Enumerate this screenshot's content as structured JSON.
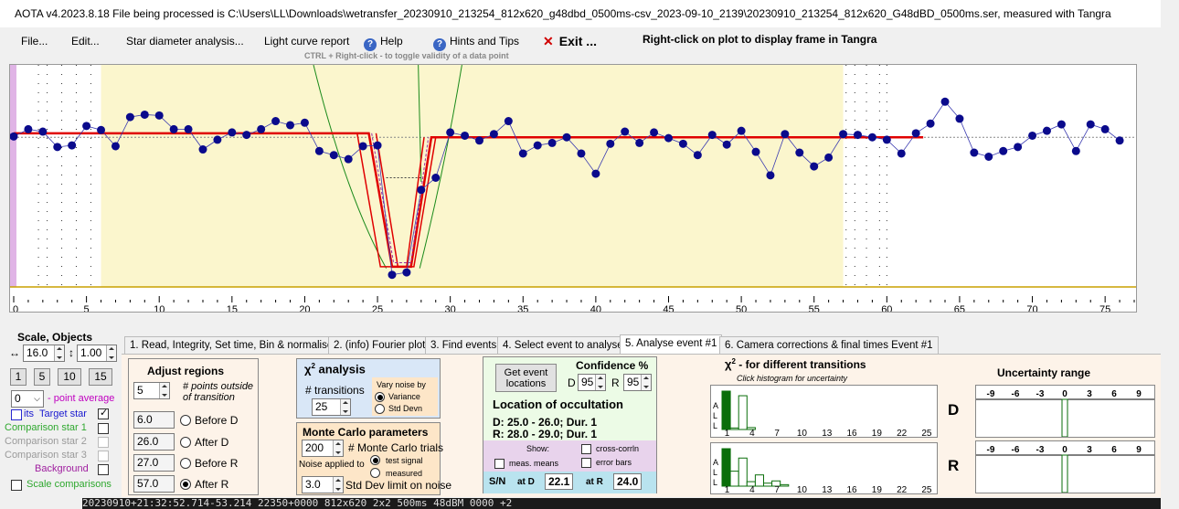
{
  "window": {
    "title": "AOTA v4.2023.8.18    File being processed is C:\\Users\\LL\\Downloads\\wetransfer_20230910_213254_812x620_g48dbd_0500ms-csv_2023-09-10_2139\\20230910_213254_812x620_G48dBD_0500ms.ser, measured with Tangra"
  },
  "menu": {
    "file": "File...",
    "edit": "Edit...",
    "star_diameter": "Star diameter analysis...",
    "light_curve": "Light curve report",
    "help": "Help",
    "hints": "Hints and Tips",
    "exit": "Exit ...",
    "right_click_hint": "Right-click on plot to display frame in Tangra",
    "ctrl_hint": "CTRL + Right-click  -  to toggle validity of a data point"
  },
  "icons": {
    "help": "help-circle-icon",
    "hints": "help-circle-icon",
    "exit": "red-x-icon"
  },
  "colors": {
    "highlight": "#fbf6cd",
    "model": "#e00000",
    "points": "#0a0a8c",
    "panel": "#fdf3e9",
    "chi_box": "#d9e7f7",
    "monte_box": "#fde6c8",
    "event_box": "#ecfbe6",
    "show_box": "#e8d3ec",
    "sn_box": "#b9e3ef"
  },
  "chart_data": {
    "type": "scatter",
    "x": [
      0,
      1,
      2,
      3,
      4,
      5,
      6,
      7,
      8,
      9,
      10,
      11,
      12,
      13,
      14,
      15,
      16,
      17,
      18,
      19,
      20,
      21,
      22,
      23,
      24,
      25,
      26,
      27,
      28,
      29,
      30,
      31,
      32,
      33,
      34,
      35,
      36,
      37,
      38,
      39,
      40,
      41,
      42,
      43,
      44,
      45,
      46,
      47,
      48,
      49,
      50,
      51,
      52,
      53,
      54,
      55,
      56,
      57,
      58,
      59,
      60,
      61,
      62,
      63,
      64,
      65,
      66,
      67,
      68,
      69,
      70,
      71,
      72,
      73,
      74,
      75,
      76
    ],
    "values": [
      0.01,
      0.1,
      0.07,
      -0.12,
      -0.1,
      0.14,
      0.09,
      -0.11,
      0.25,
      0.28,
      0.27,
      0.1,
      0.1,
      -0.15,
      -0.03,
      0.06,
      0.03,
      0.1,
      0.2,
      0.15,
      0.18,
      -0.17,
      -0.22,
      -0.27,
      -0.11,
      -0.1,
      -1.7,
      -1.67,
      -0.65,
      -0.5,
      0.06,
      0.02,
      -0.04,
      0.04,
      0.2,
      -0.2,
      -0.1,
      -0.07,
      0.0,
      -0.2,
      -0.45,
      -0.08,
      0.07,
      -0.07,
      0.06,
      -0.01,
      -0.08,
      -0.22,
      0.03,
      -0.09,
      0.08,
      -0.18,
      -0.47,
      0.04,
      -0.19,
      -0.36,
      -0.25,
      0.04,
      0.03,
      0.0,
      -0.03,
      -0.2,
      0.05,
      0.17,
      0.44,
      0.23,
      -0.19,
      -0.24,
      -0.17,
      -0.12,
      0.02,
      0.08,
      0.16,
      -0.17,
      0.16,
      0.1,
      -0.04
    ],
    "model_x": [
      0,
      24.4,
      26.0,
      27.3,
      28.7,
      62.5
    ],
    "model_y": [
      0.05,
      0.05,
      -1.6,
      -1.6,
      0.0,
      0.0
    ],
    "x_ticks": [
      0,
      5,
      10,
      15,
      20,
      25,
      30,
      35,
      40,
      45,
      50,
      55,
      60,
      65,
      70,
      75
    ],
    "highlight_ranges": [
      [
        6,
        57
      ]
    ],
    "xlim": [
      0,
      77
    ],
    "ylim": [
      -1.85,
      0.85
    ],
    "grid": false
  },
  "left": {
    "scale_title": "Scale,  Objects",
    "h_value": "16.0",
    "v_value": "1.00",
    "scale_buttons": [
      "1",
      "5",
      "10",
      "15"
    ],
    "point_avg_value": "0",
    "point_avg_label": "- point average",
    "target_left": "its",
    "target_label": "Target star",
    "comparison1": "Comparison star 1",
    "comparison2": "Comparison star 2",
    "comparison3": "Comparison star 3",
    "background": "Background",
    "scale_comparisons": "Scale comparisons"
  },
  "tabs": [
    "1.  Read, Integrity, Set time, Bin & normalise",
    "2. (info)  Fourier plot",
    "3. Find events",
    "4. Select event to analyse",
    "5. Analyse event #1",
    "6. Camera corrections & final times Event #1"
  ],
  "adjust": {
    "title": "Adjust regions",
    "points_value": "5",
    "points_label": "# points outside of transition",
    "before_d_value": "6.0",
    "before_d_label": "Before D",
    "after_d_value": "26.0",
    "after_d_label": "After D",
    "before_r_value": "27.0",
    "before_r_label": "Before R",
    "after_r_value": "57.0",
    "after_r_label": "After R"
  },
  "chi": {
    "title": "χ",
    "title_sup": "2",
    "title_suffix": " analysis",
    "transitions_label": "# transitions",
    "transitions_value": "25",
    "vary_label": "Vary noise by",
    "variance": "Variance",
    "std_devn": "Std Devn"
  },
  "monte": {
    "title": "Monte Carlo parameters",
    "trials_value": "200",
    "trials_label": "# Monte Carlo trials",
    "noise_label": "Noise applied to",
    "test_signal": "test signal",
    "measured": "measured",
    "std_value": "3.0",
    "std_label": "Std Dev limit on noise"
  },
  "event": {
    "get_button": "Get event locations",
    "confidence_title": "Confidence %",
    "d_label": "D",
    "d_value": "95",
    "r_label": "R",
    "r_value": "95",
    "location_title": "Location of occultation",
    "d_line": "D: 25.0 - 26.0; Dur. 1",
    "r_line": "R: 28.0 - 29.0; Dur. 1",
    "show_label": "Show:",
    "meas_means": "meas. means",
    "cross_corrln": "cross-corrln",
    "error_bars": "error bars",
    "sn_label": "S/N",
    "at_d": "at D",
    "sn_d": "22.1",
    "at_r": "at R",
    "sn_r": "24.0"
  },
  "chi_hist": {
    "title": "χ",
    "title_sup": "2",
    "title_suffix": " - for different transitions",
    "subtitle": "Click histogram for uncertainty",
    "x_labels": [
      "1",
      "4",
      "7",
      "10",
      "13",
      "16",
      "19",
      "22",
      "25"
    ],
    "side_letters": [
      "A",
      "L",
      "L"
    ],
    "d_label": "D",
    "r_label": "R",
    "d_hist": [
      100,
      4,
      88,
      5,
      0,
      0,
      0,
      0,
      0,
      0,
      0,
      0,
      0,
      0,
      0,
      0,
      0,
      0,
      0,
      0,
      0,
      0,
      0,
      0,
      0
    ],
    "r_hist": [
      100,
      40,
      75,
      12,
      30,
      8,
      14,
      4,
      0,
      0,
      0,
      0,
      0,
      0,
      0,
      0,
      0,
      0,
      0,
      0,
      0,
      0,
      0,
      0,
      0
    ]
  },
  "uncertainty": {
    "title": "Uncertainty range",
    "labels": [
      "-9",
      "-6",
      "-3",
      "0",
      "3",
      "6",
      "9"
    ]
  },
  "bottom_strip": "20230910+21:32:52.714-53.214 22350+0000  812x620 2x2  500ms 48dBM 0000 +2"
}
